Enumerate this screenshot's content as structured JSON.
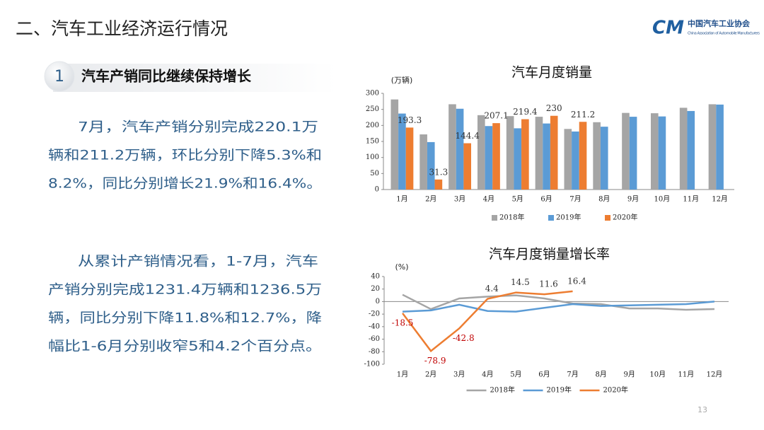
{
  "header": {
    "title": "二、汽车工业经济运行情况",
    "logo_mark": "CM",
    "logo_name": "中国汽车工业协会",
    "logo_subname": "China Association of Automobile Manufacturers"
  },
  "section": {
    "number": "1",
    "heading": "汽车产销同比继续保持增长"
  },
  "paragraphs": [
    [
      "7月，汽车产销分别完成220.1万",
      "辆和211.2万辆，环比分别下降5.3%和",
      "8.2%，同比分别增长21.9%和16.4%。"
    ],
    [
      "从累计产销情况看，1-7月，汽车",
      "产销分别完成1231.4万辆和1236.5万",
      "辆，同比分别下降11.8%和12.7%，降",
      "幅比1-6月分别收窄5和4.2个百分点。"
    ]
  ],
  "page_number": "13",
  "chart_data": [
    {
      "type": "bar",
      "title": "汽车月度销量",
      "y_label": "(万辆)",
      "categories": [
        "1月",
        "2月",
        "3月",
        "4月",
        "5月",
        "6月",
        "7月",
        "8月",
        "9月",
        "10月",
        "11月",
        "12月"
      ],
      "series": [
        {
          "name": "2018年",
          "color": "#a5a5a5",
          "values": [
            281,
            172,
            266,
            232,
            229,
            227,
            189,
            210,
            239,
            238,
            255,
            266
          ]
        },
        {
          "name": "2019年",
          "color": "#5b9bd5",
          "values": [
            237,
            148,
            252,
            198,
            191,
            206,
            181,
            196,
            227,
            228,
            245,
            265
          ]
        },
        {
          "name": "2020年",
          "color": "#ed7d31",
          "values": [
            193.3,
            31.3,
            144.4,
            207.1,
            219.4,
            230,
            211.2,
            null,
            null,
            null,
            null,
            null
          ],
          "data_labels": true
        }
      ],
      "ylim": [
        0,
        300
      ],
      "yticks": [
        0,
        50,
        100,
        150,
        200,
        250,
        300
      ],
      "legend": "bottom"
    },
    {
      "type": "line",
      "title": "汽车月度销量增长率",
      "y_label": "(%)",
      "categories": [
        "1月",
        "2月",
        "3月",
        "4月",
        "5月",
        "6月",
        "7月",
        "8月",
        "9月",
        "10月",
        "11月",
        "12月"
      ],
      "series": [
        {
          "name": "2018年",
          "color": "#a5a5a5",
          "values": [
            11,
            -12,
            5,
            8,
            10,
            5,
            -3,
            -4,
            -11,
            -11,
            -13,
            -12
          ]
        },
        {
          "name": "2019年",
          "color": "#5b9bd5",
          "values": [
            -16,
            -14,
            -5,
            -15,
            -16,
            -10,
            -4,
            -7,
            -6,
            -5,
            -4,
            0
          ]
        },
        {
          "name": "2020年",
          "color": "#ed7d31",
          "values": [
            -18.5,
            -78.9,
            -42.8,
            4.4,
            14.5,
            11.6,
            16.4,
            null,
            null,
            null,
            null,
            null
          ],
          "data_labels": true
        }
      ],
      "ylim": [
        -100,
        40
      ],
      "yticks": [
        -100,
        -80,
        -60,
        -40,
        -20,
        0,
        20,
        40
      ],
      "legend": "bottom"
    }
  ]
}
